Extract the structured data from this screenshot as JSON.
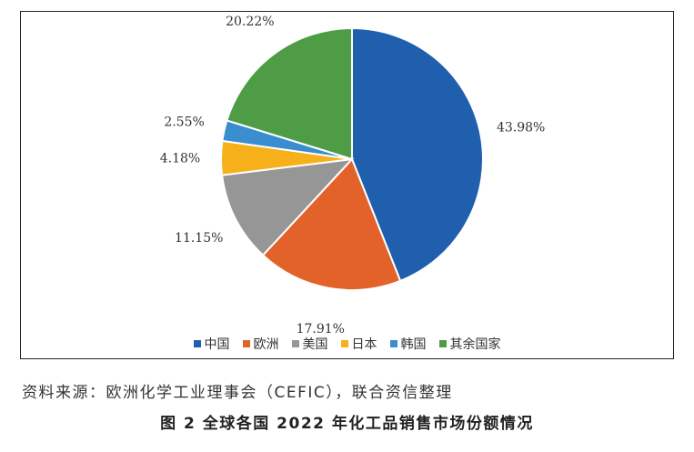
{
  "chart_data": {
    "type": "pie",
    "series": [
      {
        "name": "中国",
        "value": 43.98,
        "label": "43.98%",
        "color": "#1f5fad"
      },
      {
        "name": "欧洲",
        "value": 17.91,
        "label": "17.91%",
        "color": "#e2622a"
      },
      {
        "name": "美国",
        "value": 11.15,
        "label": "11.15%",
        "color": "#969696"
      },
      {
        "name": "日本",
        "value": 4.18,
        "label": "4.18%",
        "color": "#f5b01a"
      },
      {
        "name": "韩国",
        "value": 2.55,
        "label": "2.55%",
        "color": "#3a8ed0"
      },
      {
        "name": "其余国家",
        "value": 20.22,
        "label": "20.22%",
        "color": "#4e9c45"
      }
    ],
    "legend_position": "bottom"
  },
  "source_text": "资料来源：欧洲化学工业理事会（CEFIC），联合资信整理",
  "caption": "图 2  全球各国 2022 年化工品销售市场份额情况"
}
